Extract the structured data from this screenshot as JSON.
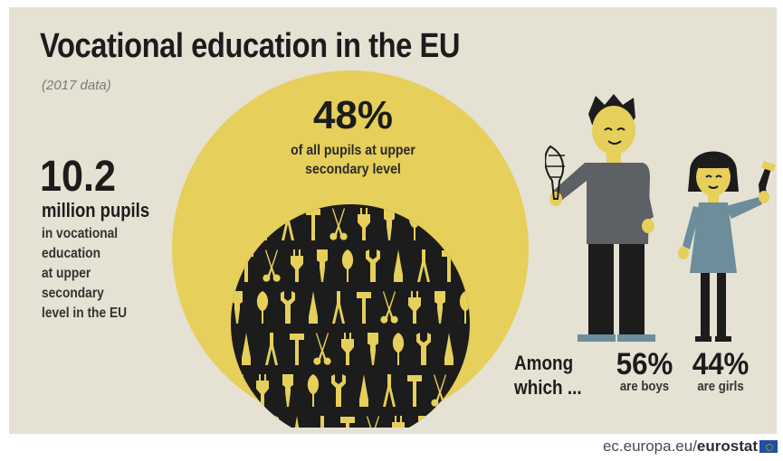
{
  "header": {
    "title": "Vocational education in the EU",
    "subtitle": "(2017 data)"
  },
  "left": {
    "number": "10.2",
    "unit": "million pupils",
    "description_lines": [
      "in vocational",
      "education",
      "at upper",
      "secondary",
      "level in the EU"
    ]
  },
  "center": {
    "percent": "48%",
    "caption_lines": [
      "of all pupils at upper",
      "secondary level"
    ],
    "tool_icons": [
      "whisk-icon",
      "wrench-icon",
      "pliers-icon",
      "hammer-icon",
      "scissors-icon",
      "plug-icon",
      "brush-icon",
      "soldering-iron-icon"
    ]
  },
  "right": {
    "among_lines": [
      "Among",
      "which ..."
    ],
    "boys": {
      "value": "56%",
      "label": "are boys"
    },
    "girls": {
      "value": "44%",
      "label": "are girls"
    }
  },
  "footer": {
    "source_prefix": "ec.europa.eu/",
    "source_brand": "eurostat"
  },
  "colors": {
    "background": "#e5e1d3",
    "accent_yellow": "#e6cf5a",
    "dark": "#1c1c1c",
    "boy_shirt": "#5d6064",
    "girl_dress": "#6d8d9b"
  }
}
